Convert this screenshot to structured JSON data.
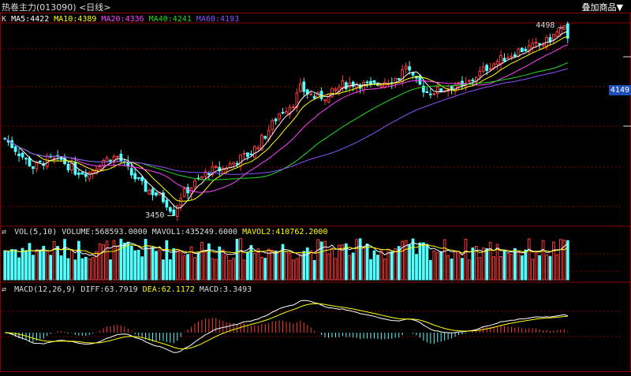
{
  "title": "热卷主力(013090) <日线>",
  "overlay_button": "叠加商品▼",
  "main_indicator": {
    "prefix": "K",
    "ma": [
      {
        "label": "MA5:4422",
        "color": "#ffffff"
      },
      {
        "label": "MA10:4389",
        "color": "#ffff00"
      },
      {
        "label": "MA20:4336",
        "color": "#ff44ff"
      },
      {
        "label": "MA40:4241",
        "color": "#22dd22"
      },
      {
        "label": "MA60:4193",
        "color": "#8855ff"
      }
    ]
  },
  "price_tag": "4149",
  "high_label": "4498",
  "low_label": "3450",
  "volume_indicator": {
    "name": "VOL(5,10)",
    "volume": "VOLUME:568593.0000",
    "mavol1": "MAVOL1:435249.6000",
    "mavol2": "MAVOL2:410762.2000"
  },
  "macd_indicator": {
    "name": "MACD(12,26,9)",
    "diff": "DIFF:63.7919",
    "dea": "DEA:62.1172",
    "macd": "MACD:3.3493"
  },
  "colors": {
    "up": "#ff3b3b",
    "down": "#54ffff",
    "ma5": "#ffffff",
    "ma10": "#ffff00",
    "ma20": "#ff44ff",
    "ma40": "#22dd22",
    "ma60": "#8855ff",
    "grid": "#8b0000"
  },
  "chart_data": {
    "type": "candlestick",
    "candles": [],
    "price_range": [
      3400,
      4520
    ],
    "high": 4498,
    "low": 3450,
    "volumes": [],
    "macd": []
  }
}
